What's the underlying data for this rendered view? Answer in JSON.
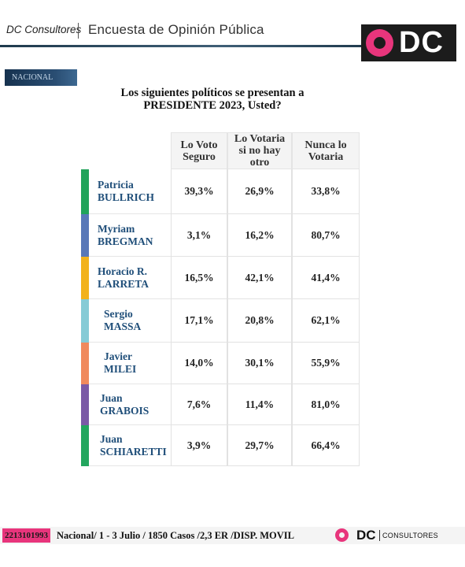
{
  "header": {
    "brand": "DC Consultores",
    "survey_title": "Encuesta de Opinión Pública",
    "logo_text": "DC"
  },
  "badge": "NACIONAL",
  "question_line1": "Los siguientes políticos se presentan a",
  "question_line2": "PRESIDENTE 2023, Usted?",
  "columns": [
    {
      "line1": "Lo Voto",
      "line2": "Seguro"
    },
    {
      "line1": "Lo Votaria",
      "line2": "si no hay",
      "line3": "otro"
    },
    {
      "line1": "Nunca lo",
      "line2": "Votaria"
    }
  ],
  "rows": [
    {
      "first": "Patricia",
      "last": "BULLRICH",
      "color": "#21a35a",
      "values": [
        "39,3%",
        "26,9%",
        "33,8%"
      ]
    },
    {
      "first": "Myriam",
      "last": "BREGMAN",
      "color": "#5878b8",
      "values": [
        "3,1%",
        "16,2%",
        "80,7%"
      ]
    },
    {
      "first": "Horacio R.",
      "last": "LARRETA",
      "color": "#f2b21c",
      "values": [
        "16,5%",
        "42,1%",
        "41,4%"
      ]
    },
    {
      "first": "Sergio",
      "last": "MASSA",
      "color": "#86cbd6",
      "values": [
        "17,1%",
        "20,8%",
        "62,1%"
      ]
    },
    {
      "first": "Javier",
      "last": "MILEI",
      "color": "#f08a5d",
      "values": [
        "14,0%",
        "30,1%",
        "55,9%"
      ]
    },
    {
      "first": "Juan",
      "last": "GRABOIS",
      "color": "#7b5aa6",
      "values": [
        "7,6%",
        "11,4%",
        "81,0%"
      ]
    },
    {
      "first": "Juan",
      "last": "SCHIARETTI",
      "color": "#23a65e",
      "values": [
        "3,9%",
        "29,7%",
        "66,4%"
      ]
    }
  ],
  "footer": {
    "phone": "2213101993",
    "text": "Nacional/ 1 - 3 Julio / 1850 Casos /2,3  ER /DISP. MOVIL",
    "logo_text": "DC",
    "consultores": "CONSULTORES"
  }
}
